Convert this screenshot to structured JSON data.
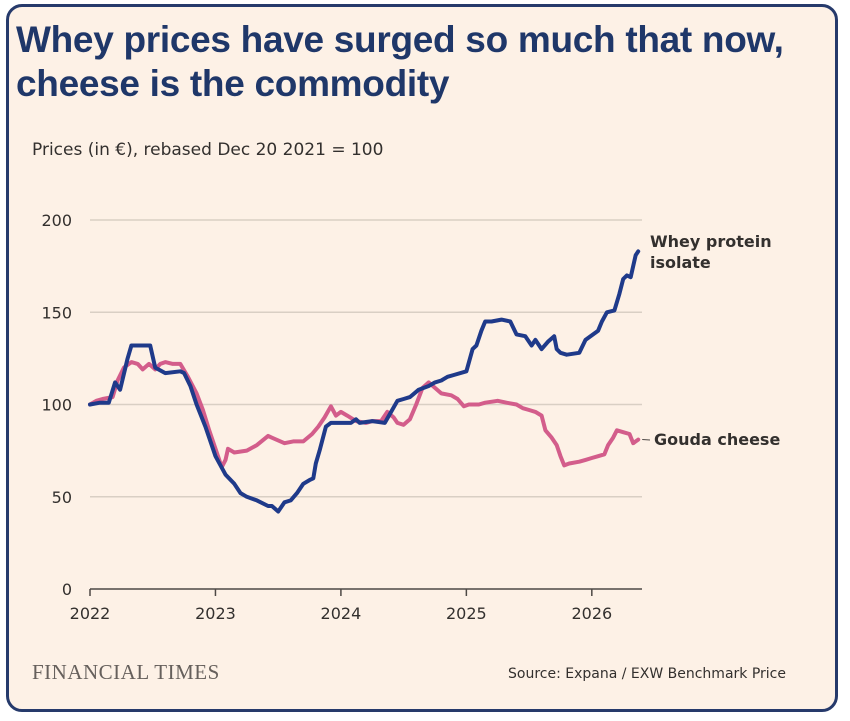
{
  "title": "Whey prices have surged so much that now, cheese is the commodity",
  "subtitle": "Prices (in €), rebased Dec 20 2021 = 100",
  "source": "Source: Expana / EXW Benchmark Price",
  "logo_text": "FINANCIAL TIMES",
  "colors": {
    "background": "#fdf1e6",
    "border": "#263a6b",
    "title": "#1f3769",
    "whey": "#1f3a8a",
    "gouda": "#d35d8b",
    "grid": "#d9cfc4"
  },
  "chart_data": {
    "type": "line",
    "title": "Whey prices have surged so much that now, cheese is the commodity",
    "subtitle": "Prices (in €), rebased Dec 20 2021 = 100",
    "xlabel": "",
    "ylabel": "",
    "xlim": [
      2022.0,
      2026.4
    ],
    "ylim": [
      0,
      200
    ],
    "yticks": [
      0,
      50,
      100,
      150,
      200
    ],
    "xticks": [
      2022,
      2023,
      2024,
      2025,
      2026
    ],
    "xtick_labels": [
      "2022",
      "2023",
      "2024",
      "2025",
      "2026"
    ],
    "grid": "horizontal",
    "legend": "direct labels at line ends",
    "series": [
      {
        "name": "Whey protein isolate",
        "color": "#1f3a8a",
        "points": [
          [
            2022.0,
            100
          ],
          [
            2022.08,
            101
          ],
          [
            2022.15,
            101
          ],
          [
            2022.2,
            112
          ],
          [
            2022.24,
            108
          ],
          [
            2022.3,
            125
          ],
          [
            2022.33,
            132
          ],
          [
            2022.48,
            132
          ],
          [
            2022.52,
            120
          ],
          [
            2022.6,
            117
          ],
          [
            2022.72,
            118
          ],
          [
            2022.75,
            117
          ],
          [
            2022.8,
            110
          ],
          [
            2022.85,
            100
          ],
          [
            2022.92,
            88
          ],
          [
            2023.0,
            72
          ],
          [
            2023.08,
            62
          ],
          [
            2023.15,
            57
          ],
          [
            2023.2,
            52
          ],
          [
            2023.25,
            50
          ],
          [
            2023.33,
            48
          ],
          [
            2023.42,
            45
          ],
          [
            2023.45,
            45
          ],
          [
            2023.5,
            42
          ],
          [
            2023.55,
            47
          ],
          [
            2023.6,
            48
          ],
          [
            2023.65,
            52
          ],
          [
            2023.7,
            57
          ],
          [
            2023.75,
            59
          ],
          [
            2023.78,
            60
          ],
          [
            2023.8,
            68
          ],
          [
            2023.83,
            75
          ],
          [
            2023.88,
            88
          ],
          [
            2023.92,
            90
          ],
          [
            2024.0,
            90
          ],
          [
            2024.08,
            90
          ],
          [
            2024.12,
            92
          ],
          [
            2024.15,
            90
          ],
          [
            2024.25,
            91
          ],
          [
            2024.35,
            90
          ],
          [
            2024.4,
            96
          ],
          [
            2024.45,
            102
          ],
          [
            2024.5,
            103
          ],
          [
            2024.55,
            104
          ],
          [
            2024.62,
            108
          ],
          [
            2024.7,
            110
          ],
          [
            2024.75,
            112
          ],
          [
            2024.8,
            113
          ],
          [
            2024.85,
            115
          ],
          [
            2024.9,
            116
          ],
          [
            2025.0,
            118
          ],
          [
            2025.05,
            130
          ],
          [
            2025.08,
            132
          ],
          [
            2025.12,
            140
          ],
          [
            2025.15,
            145
          ],
          [
            2025.2,
            145
          ],
          [
            2025.28,
            146
          ],
          [
            2025.35,
            145
          ],
          [
            2025.4,
            138
          ],
          [
            2025.47,
            137
          ],
          [
            2025.52,
            132
          ],
          [
            2025.55,
            135
          ],
          [
            2025.6,
            130
          ],
          [
            2025.65,
            134
          ],
          [
            2025.7,
            137
          ],
          [
            2025.72,
            130
          ],
          [
            2025.75,
            128
          ],
          [
            2025.8,
            127
          ],
          [
            2025.9,
            128
          ],
          [
            2025.95,
            135
          ],
          [
            2026.05,
            140
          ],
          [
            2026.08,
            145
          ],
          [
            2026.12,
            150
          ],
          [
            2026.18,
            151
          ],
          [
            2026.22,
            160
          ],
          [
            2026.25,
            168
          ],
          [
            2026.28,
            170
          ],
          [
            2026.31,
            169
          ],
          [
            2026.33,
            175
          ],
          [
            2026.35,
            181
          ],
          [
            2026.37,
            183
          ]
        ]
      },
      {
        "name": "Gouda cheese",
        "color": "#d35d8b",
        "points": [
          [
            2022.0,
            100
          ],
          [
            2022.05,
            102
          ],
          [
            2022.1,
            103
          ],
          [
            2022.18,
            104
          ],
          [
            2022.22,
            113
          ],
          [
            2022.27,
            120
          ],
          [
            2022.33,
            123
          ],
          [
            2022.38,
            122
          ],
          [
            2022.42,
            119
          ],
          [
            2022.47,
            122
          ],
          [
            2022.52,
            119
          ],
          [
            2022.56,
            122
          ],
          [
            2022.6,
            123
          ],
          [
            2022.66,
            122
          ],
          [
            2022.72,
            122
          ],
          [
            2022.78,
            115
          ],
          [
            2022.85,
            106
          ],
          [
            2022.9,
            97
          ],
          [
            2022.95,
            86
          ],
          [
            2023.0,
            76
          ],
          [
            2023.05,
            66
          ],
          [
            2023.08,
            70
          ],
          [
            2023.1,
            76
          ],
          [
            2023.15,
            74
          ],
          [
            2023.25,
            75
          ],
          [
            2023.33,
            78
          ],
          [
            2023.42,
            83
          ],
          [
            2023.45,
            82
          ],
          [
            2023.55,
            79
          ],
          [
            2023.62,
            80
          ],
          [
            2023.7,
            80
          ],
          [
            2023.77,
            84
          ],
          [
            2023.82,
            88
          ],
          [
            2023.87,
            93
          ],
          [
            2023.92,
            99
          ],
          [
            2023.96,
            94
          ],
          [
            2024.0,
            96
          ],
          [
            2024.05,
            94
          ],
          [
            2024.12,
            91
          ],
          [
            2024.2,
            90
          ],
          [
            2024.25,
            91
          ],
          [
            2024.32,
            91
          ],
          [
            2024.37,
            96
          ],
          [
            2024.42,
            93
          ],
          [
            2024.45,
            90
          ],
          [
            2024.5,
            89
          ],
          [
            2024.55,
            92
          ],
          [
            2024.6,
            100
          ],
          [
            2024.65,
            109
          ],
          [
            2024.7,
            112
          ],
          [
            2024.75,
            109
          ],
          [
            2024.8,
            106
          ],
          [
            2024.88,
            105
          ],
          [
            2024.93,
            103
          ],
          [
            2024.98,
            99
          ],
          [
            2025.02,
            100
          ],
          [
            2025.1,
            100
          ],
          [
            2025.15,
            101
          ],
          [
            2025.25,
            102
          ],
          [
            2025.32,
            101
          ],
          [
            2025.4,
            100
          ],
          [
            2025.45,
            98
          ],
          [
            2025.5,
            97
          ],
          [
            2025.55,
            96
          ],
          [
            2025.6,
            94
          ],
          [
            2025.63,
            86
          ],
          [
            2025.68,
            82
          ],
          [
            2025.72,
            78
          ],
          [
            2025.75,
            72
          ],
          [
            2025.78,
            67
          ],
          [
            2025.82,
            68
          ],
          [
            2025.9,
            69
          ],
          [
            2025.95,
            70
          ],
          [
            2026.0,
            71
          ],
          [
            2026.05,
            72
          ],
          [
            2026.1,
            73
          ],
          [
            2026.13,
            78
          ],
          [
            2026.17,
            82
          ],
          [
            2026.2,
            86
          ],
          [
            2026.25,
            85
          ],
          [
            2026.3,
            84
          ],
          [
            2026.33,
            79
          ],
          [
            2026.35,
            80
          ],
          [
            2026.37,
            81
          ]
        ]
      }
    ]
  }
}
